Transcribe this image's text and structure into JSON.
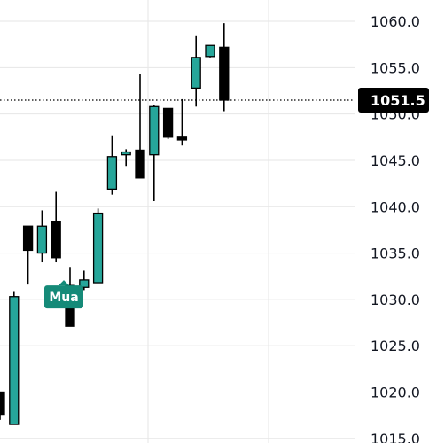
{
  "chart_data": {
    "type": "candlestick",
    "ylim": [
      1014.5,
      1062.3
    ],
    "y_ticks": [
      1015.0,
      1020.0,
      1025.0,
      1030.0,
      1035.0,
      1040.0,
      1045.0,
      1050.0,
      1055.0,
      1060.0
    ],
    "y_tick_labels": [
      "1015.0",
      "1020.0",
      "1025.0",
      "1030.0",
      "1035.0",
      "1040.0",
      "1045.0",
      "1050.0",
      "1055.0",
      "1060.0"
    ],
    "grid": true,
    "last_price": 1051.5,
    "last_price_label": "1051.5",
    "colors": {
      "up": "#26a69a",
      "down": "#000000",
      "grid": "#e6e6e6",
      "price_line": "#000000",
      "price_tag_bg": "#000000",
      "marker_bg": "#158a78"
    },
    "candles": [
      {
        "open": 1020.0,
        "high": 1020.0,
        "low": 1017.0,
        "close": 1017.6
      },
      {
        "open": 1016.5,
        "high": 1030.8,
        "low": 1016.5,
        "close": 1030.3
      },
      {
        "open": 1037.9,
        "high": 1037.9,
        "low": 1031.6,
        "close": 1035.3
      },
      {
        "open": 1035.0,
        "high": 1039.6,
        "low": 1034.0,
        "close": 1037.9
      },
      {
        "open": 1038.4,
        "high": 1041.6,
        "low": 1034.0,
        "close": 1034.5
      },
      {
        "open": 1031.5,
        "high": 1033.5,
        "low": 1027.1,
        "close": 1027.1
      },
      {
        "open": 1031.3,
        "high": 1033.1,
        "low": 1031.0,
        "close": 1032.1
      },
      {
        "open": 1031.8,
        "high": 1039.8,
        "low": 1031.8,
        "close": 1039.3
      },
      {
        "open": 1041.9,
        "high": 1047.7,
        "low": 1041.3,
        "close": 1045.4
      },
      {
        "open": 1045.6,
        "high": 1046.2,
        "low": 1044.4,
        "close": 1045.9
      },
      {
        "open": 1046.1,
        "high": 1054.3,
        "low": 1043.1,
        "close": 1043.1
      },
      {
        "open": 1045.6,
        "high": 1051.0,
        "low": 1040.6,
        "close": 1050.8
      },
      {
        "open": 1050.6,
        "high": 1050.6,
        "low": 1047.3,
        "close": 1047.5
      },
      {
        "open": 1047.5,
        "high": 1051.6,
        "low": 1046.6,
        "close": 1047.2
      },
      {
        "open": 1052.8,
        "high": 1058.4,
        "low": 1050.8,
        "close": 1056.1
      },
      {
        "open": 1056.2,
        "high": 1057.4,
        "low": 1056.1,
        "close": 1057.4
      },
      {
        "open": 1057.2,
        "high": 1059.8,
        "low": 1050.3,
        "close": 1051.5
      }
    ],
    "markers": [
      {
        "candle_index": 5,
        "text": "Mua"
      }
    ]
  }
}
